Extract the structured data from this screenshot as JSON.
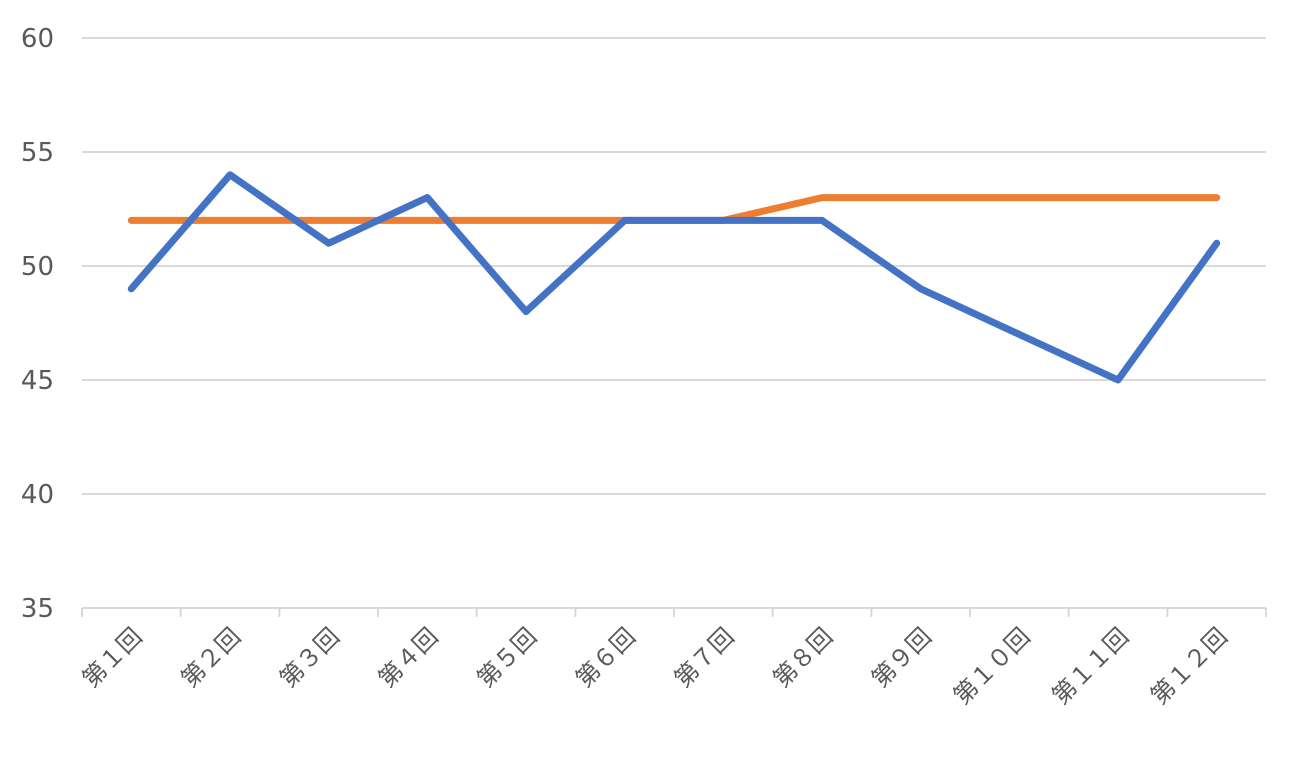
{
  "chart_data": {
    "type": "line",
    "title": "",
    "xlabel": "",
    "ylabel": "",
    "categories": [
      "第１回",
      "第２回",
      "第３回",
      "第４回",
      "第５回",
      "第６回",
      "第７回",
      "第８回",
      "第９回",
      "第１０回",
      "第１１回",
      "第１２回"
    ],
    "ylim": [
      35,
      60
    ],
    "yticks": [
      35,
      40,
      45,
      50,
      55,
      60
    ],
    "grid": true,
    "legend": "none",
    "series": [
      {
        "color": "#ED7D31",
        "values": [
          52,
          52,
          52,
          52,
          52,
          52,
          52,
          53,
          53,
          53,
          53,
          53
        ]
      },
      {
        "color": "#4472C4",
        "values": [
          49,
          54,
          51,
          53,
          48,
          52,
          52,
          52,
          49,
          47,
          45,
          51
        ]
      }
    ]
  }
}
